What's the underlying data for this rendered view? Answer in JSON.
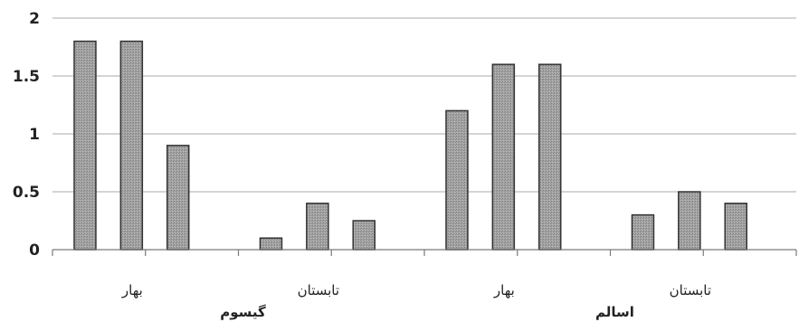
{
  "chart_data": {
    "type": "bar",
    "title": "",
    "xlabel": "",
    "ylabel": "",
    "ylim": [
      0,
      2
    ],
    "yticks": [
      "0",
      "0.5",
      "1",
      "1.5",
      "2"
    ],
    "grid": true,
    "groups": [
      {
        "label": "گیسوم",
        "categories": [
          {
            "label": "بهار",
            "values": [
              1.8,
              1.8,
              0.9
            ]
          },
          {
            "label": "تابستان",
            "values": [
              0.1,
              0.4,
              0.25
            ]
          }
        ]
      },
      {
        "label": "اسالم",
        "categories": [
          {
            "label": "بهار",
            "values": [
              1.2,
              1.6,
              1.6
            ]
          },
          {
            "label": "تابستان",
            "values": [
              0.3,
              0.5,
              0.4
            ]
          }
        ]
      }
    ],
    "colors": {
      "bar_fill": "#9a9a9a",
      "bar_stroke": "#333333",
      "grid": "#a8a8a8"
    }
  }
}
